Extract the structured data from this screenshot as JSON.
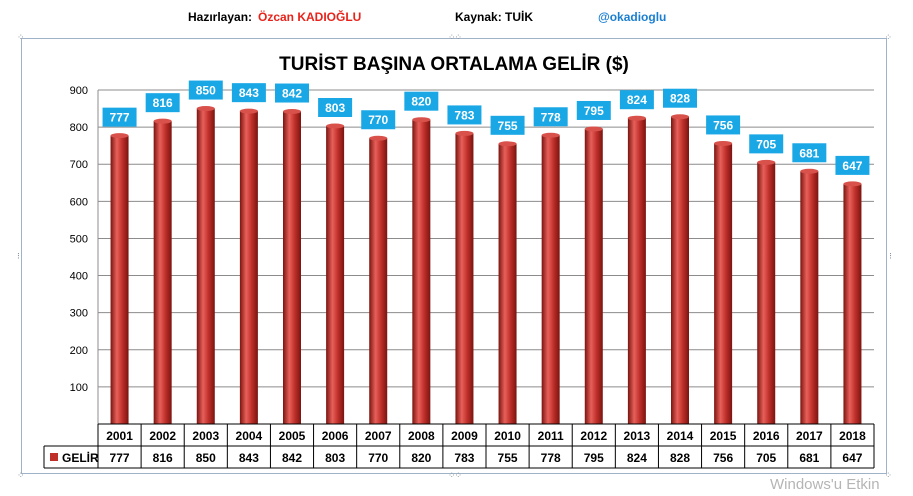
{
  "header": {
    "prepared_by_label": "Hazırlayan:",
    "prepared_by_name": "Özcan KADIOĞLU",
    "source_label": "Kaynak: TUİK",
    "handle": "@okadioglu"
  },
  "colors": {
    "bar": "#c0302b",
    "bar_highlight": "#e8605a",
    "bar_dark": "#7a1410",
    "label_bg": "#1aa7e6",
    "name_red": "#e8231b",
    "handle_blue": "#1a7fd0"
  },
  "watermark": "Windows'u Etkin",
  "chart_data": {
    "type": "bar",
    "title": "TURİST BAŞINA ORTALAMA GELİR ($)",
    "categories": [
      "2001",
      "2002",
      "2003",
      "2004",
      "2005",
      "2006",
      "2007",
      "2008",
      "2009",
      "2010",
      "2011",
      "2012",
      "2013",
      "2014",
      "2015",
      "2016",
      "2017",
      "2018"
    ],
    "series": [
      {
        "name": "GELİR",
        "values": [
          777,
          816,
          850,
          843,
          842,
          803,
          770,
          820,
          783,
          755,
          778,
          795,
          824,
          828,
          756,
          705,
          681,
          647
        ]
      }
    ],
    "yticks": [
      100,
      200,
      300,
      400,
      500,
      600,
      700,
      800,
      900
    ],
    "ylim": [
      0,
      900
    ],
    "grid": true,
    "data_table": true,
    "legend": "data-table"
  }
}
